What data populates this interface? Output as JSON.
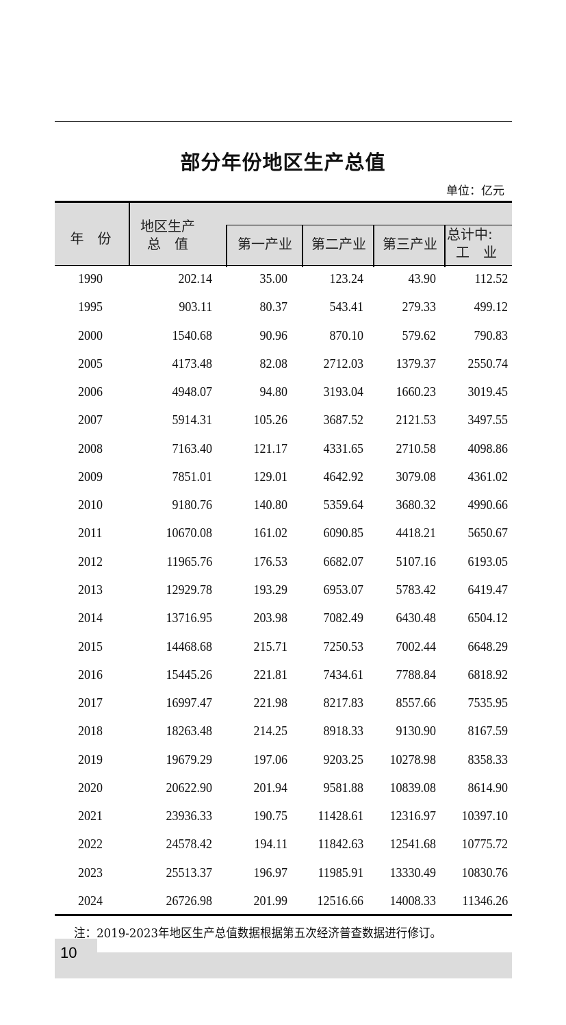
{
  "title": "部分年份地区生产总值",
  "unit": "单位：亿元",
  "columns": {
    "year": "年　份",
    "gdp_line1": "地区生产",
    "gdp_line2": "总　值",
    "primary": "第一产业",
    "secondary": "第二产业",
    "tertiary": "第三产业",
    "industry_line1": "总计中:",
    "industry_line2": "工　业"
  },
  "rows": [
    [
      "1990",
      "202.14",
      "35.00",
      "123.24",
      "43.90",
      "112.52"
    ],
    [
      "1995",
      "903.11",
      "80.37",
      "543.41",
      "279.33",
      "499.12"
    ],
    [
      "2000",
      "1540.68",
      "90.96",
      "870.10",
      "579.62",
      "790.83"
    ],
    [
      "2005",
      "4173.48",
      "82.08",
      "2712.03",
      "1379.37",
      "2550.74"
    ],
    [
      "2006",
      "4948.07",
      "94.80",
      "3193.04",
      "1660.23",
      "3019.45"
    ],
    [
      "2007",
      "5914.31",
      "105.26",
      "3687.52",
      "2121.53",
      "3497.55"
    ],
    [
      "2008",
      "7163.40",
      "121.17",
      "4331.65",
      "2710.58",
      "4098.86"
    ],
    [
      "2009",
      "7851.01",
      "129.01",
      "4642.92",
      "3079.08",
      "4361.02"
    ],
    [
      "2010",
      "9180.76",
      "140.80",
      "5359.64",
      "3680.32",
      "4990.66"
    ],
    [
      "2011",
      "10670.08",
      "161.02",
      "6090.85",
      "4418.21",
      "5650.67"
    ],
    [
      "2012",
      "11965.76",
      "176.53",
      "6682.07",
      "5107.16",
      "6193.05"
    ],
    [
      "2013",
      "12929.78",
      "193.29",
      "6953.07",
      "5783.42",
      "6419.47"
    ],
    [
      "2014",
      "13716.95",
      "203.98",
      "7082.49",
      "6430.48",
      "6504.12"
    ],
    [
      "2015",
      "14468.68",
      "215.71",
      "7250.53",
      "7002.44",
      "6648.29"
    ],
    [
      "2016",
      "15445.26",
      "221.81",
      "7434.61",
      "7788.84",
      "6818.92"
    ],
    [
      "2017",
      "16997.47",
      "221.98",
      "8217.83",
      "8557.66",
      "7535.95"
    ],
    [
      "2018",
      "18263.48",
      "214.25",
      "8918.33",
      "9130.90",
      "8167.59"
    ],
    [
      "2019",
      "19679.29",
      "197.06",
      "9203.25",
      "10278.98",
      "8358.33"
    ],
    [
      "2020",
      "20622.90",
      "201.94",
      "9581.88",
      "10839.08",
      "8614.90"
    ],
    [
      "2021",
      "23936.33",
      "190.75",
      "11428.61",
      "12316.97",
      "10397.10"
    ],
    [
      "2022",
      "24578.42",
      "194.11",
      "11842.63",
      "12541.68",
      "10775.72"
    ],
    [
      "2023",
      "25513.37",
      "196.97",
      "11985.91",
      "13330.49",
      "10830.76"
    ],
    [
      "2024",
      "26726.98",
      "201.99",
      "12516.66",
      "14008.33",
      "11346.26"
    ]
  ],
  "note": "注：2019-2023年地区生产总值数据根据第五次经济普查数据进行修订。",
  "page_number": "10",
  "colors": {
    "header_bg": "#dcdcdc",
    "footer_bg": "#dcdcdc"
  }
}
